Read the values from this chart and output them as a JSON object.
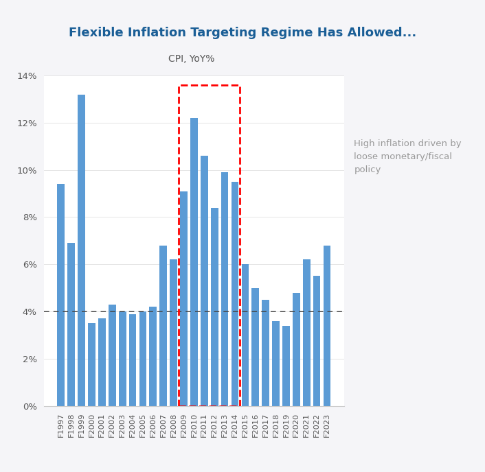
{
  "title": "Flexible Inflation Targeting Regime Has Allowed...",
  "subtitle": "CPI, YoY%",
  "years": [
    "F1997",
    "F1998",
    "F1999",
    "F2000",
    "F2001",
    "F2002",
    "F2003",
    "F2004",
    "F2005",
    "F2006",
    "F2007",
    "F2008",
    "F2009",
    "F2010",
    "F2011",
    "F2012",
    "F2013",
    "F2014",
    "F2015",
    "F2016",
    "F2017",
    "F2018",
    "F2019",
    "F2020",
    "F2021",
    "F2022",
    "F2023"
  ],
  "values": [
    9.4,
    6.9,
    13.2,
    3.5,
    3.7,
    4.3,
    4.0,
    3.9,
    4.0,
    4.2,
    6.8,
    6.2,
    9.1,
    12.2,
    10.6,
    8.4,
    9.9,
    9.5,
    6.0,
    5.0,
    4.5,
    3.6,
    3.4,
    4.8,
    6.2,
    5.5,
    6.8
  ],
  "bar_color": "#5B9BD5",
  "highlight_indices": [
    12,
    13,
    14,
    15,
    16,
    17
  ],
  "dashed_line_y": 4.0,
  "dashed_line_color": "#444444",
  "annotation_text": "High inflation driven by\nloose monetary/fiscal\npolicy",
  "annotation_color": "#999999",
  "title_color": "#1A5E96",
  "title_fontsize": 13,
  "subtitle_color": "#555555",
  "subtitle_fontsize": 10,
  "title_bg_color": "#EEF0F5",
  "background_color": "#F5F5F8",
  "plot_background": "#FFFFFF",
  "ylim": [
    0,
    14
  ],
  "yticks": [
    0,
    2,
    4,
    6,
    8,
    10,
    12,
    14
  ],
  "ytick_labels": [
    "0%",
    "2%",
    "4%",
    "6%",
    "8%",
    "10%",
    "12%",
    "14%"
  ]
}
